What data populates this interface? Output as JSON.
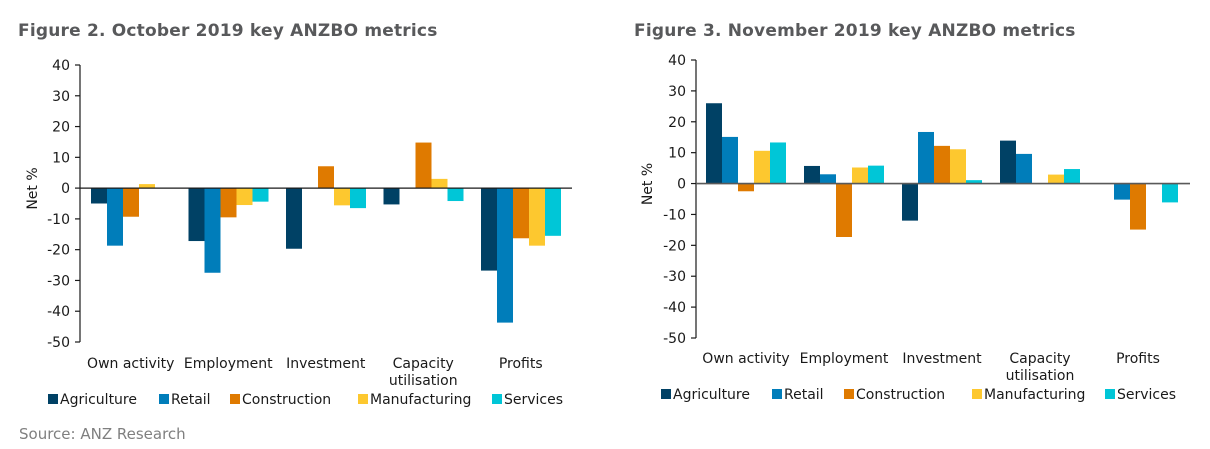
{
  "source": "Source: ANZ Research",
  "colors": {
    "Agriculture": "#004165",
    "Retail": "#007dba",
    "Construction": "#df7a00",
    "Manufacturing": "#fdc82f",
    "Services": "#00c6d7"
  },
  "chart_data": [
    {
      "type": "bar",
      "title": "Figure 2. October 2019 key ANZBO metrics",
      "xlabel": "",
      "ylabel": "Net %",
      "ylim": [
        -50,
        40
      ],
      "yticks": [
        40,
        30,
        20,
        10,
        0,
        -10,
        -20,
        -30,
        -40,
        -50
      ],
      "grid": false,
      "legend": "bottom",
      "categories": [
        "Own activity",
        "Employment",
        "Investment",
        "Capacity utilisation",
        "Profits"
      ],
      "category_lines": [
        [
          "Own activity"
        ],
        [
          "Employment"
        ],
        [
          "Investment"
        ],
        [
          "Capacity",
          "utilisation"
        ],
        [
          "Profits"
        ]
      ],
      "series": [
        {
          "name": "Agriculture",
          "values": [
            -5,
            -17.2,
            -19.7,
            -5.3,
            -26.8
          ]
        },
        {
          "name": "Retail",
          "values": [
            -18.7,
            -27.5,
            0,
            0,
            -43.7
          ]
        },
        {
          "name": "Construction",
          "values": [
            -9.3,
            -9.5,
            7.1,
            14.8,
            -16.3
          ]
        },
        {
          "name": "Manufacturing",
          "values": [
            1.3,
            -5.5,
            -5.6,
            3.0,
            -18.7
          ]
        },
        {
          "name": "Services",
          "values": [
            0,
            -4.4,
            -6.5,
            -4.2,
            -15.5
          ]
        }
      ]
    },
    {
      "type": "bar",
      "title": "Figure 3. November 2019 key ANZBO metrics",
      "xlabel": "",
      "ylabel": "Net %",
      "ylim": [
        -50,
        40
      ],
      "yticks": [
        40,
        30,
        20,
        10,
        0,
        -10,
        -20,
        -30,
        -40,
        -50
      ],
      "grid": false,
      "legend": "bottom",
      "categories": [
        "Own activity",
        "Employment",
        "Investment",
        "Capacity utilisation",
        "Profits"
      ],
      "category_lines": [
        [
          "Own activity"
        ],
        [
          "Employment"
        ],
        [
          "Investment"
        ],
        [
          "Capacity",
          "utilisation"
        ],
        [
          "Profits"
        ]
      ],
      "series": [
        {
          "name": "Agriculture",
          "values": [
            26,
            5.7,
            -12,
            13.9,
            0
          ]
        },
        {
          "name": "Retail",
          "values": [
            15.1,
            3.0,
            16.7,
            9.6,
            -5.2
          ]
        },
        {
          "name": "Construction",
          "values": [
            -2.5,
            -17.3,
            12.2,
            0,
            -14.9
          ]
        },
        {
          "name": "Manufacturing",
          "values": [
            10.6,
            5.2,
            11.1,
            2.9,
            0
          ]
        },
        {
          "name": "Services",
          "values": [
            13.3,
            5.8,
            1.1,
            4.7,
            -6.1
          ]
        }
      ]
    }
  ]
}
